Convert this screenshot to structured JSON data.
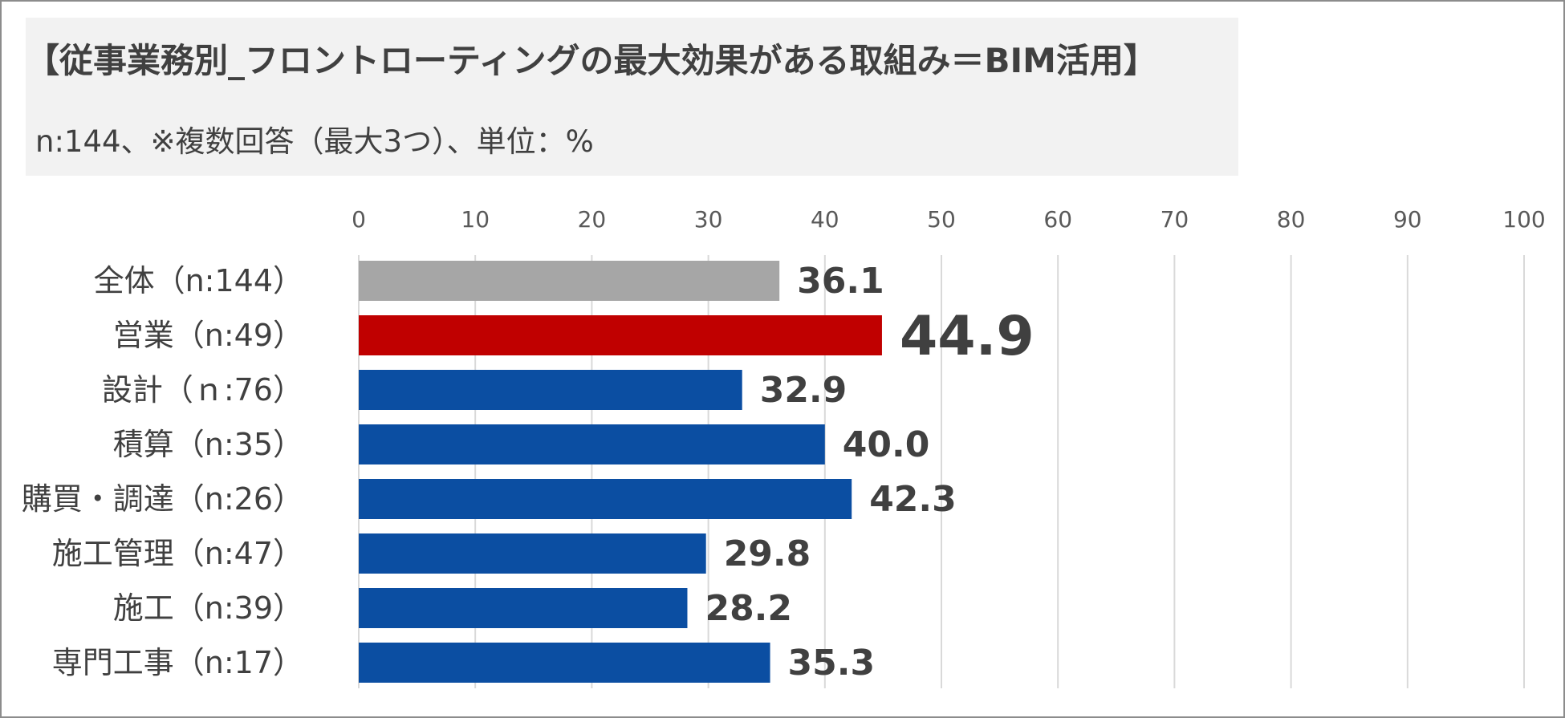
{
  "title": "【従事業務別_フロントローティングの最大効果がある取組み＝BIM活用】",
  "subtitle": "n:144、※複数回答（最大3つ）、単位：%",
  "colors": {
    "total": "#a6a6a6",
    "highlight": "#c00000",
    "default": "#0b4ea2",
    "highlight_label": "#c00000",
    "label": "#404040",
    "grid": "#d9d9d9"
  },
  "chart_data": {
    "type": "bar",
    "orientation": "horizontal",
    "title": "【従事業務別_フロントローティングの最大効果がある取組み＝BIM活用】",
    "subtitle": "n:144、※複数回答（最大3つ）、単位：%",
    "xlim": [
      0,
      100
    ],
    "ticks": [
      0,
      10,
      20,
      30,
      40,
      50,
      60,
      70,
      80,
      90,
      100
    ],
    "tick_labels": [
      "0",
      "10",
      "20",
      "30",
      "40",
      "50",
      "60",
      "70",
      "80",
      "90",
      "100"
    ],
    "categories": [
      "全体（n:144）",
      "営業（n:49）",
      "設計（ｎ:76）",
      "積算（n:35）",
      "購買・調達（n:26）",
      "施工管理（n:47）",
      "施工（n:39）",
      "専門工事（n:17）"
    ],
    "values": [
      36.1,
      44.9,
      32.9,
      40.0,
      42.3,
      29.8,
      28.2,
      35.3
    ],
    "value_labels": [
      "36.1",
      "44.9",
      "32.9",
      "40.0",
      "42.3",
      "29.8",
      "28.2",
      "35.3"
    ],
    "bar_roles": [
      "total",
      "highlight",
      "default",
      "default",
      "default",
      "default",
      "default",
      "default"
    ],
    "grid": true,
    "legend": "none"
  }
}
